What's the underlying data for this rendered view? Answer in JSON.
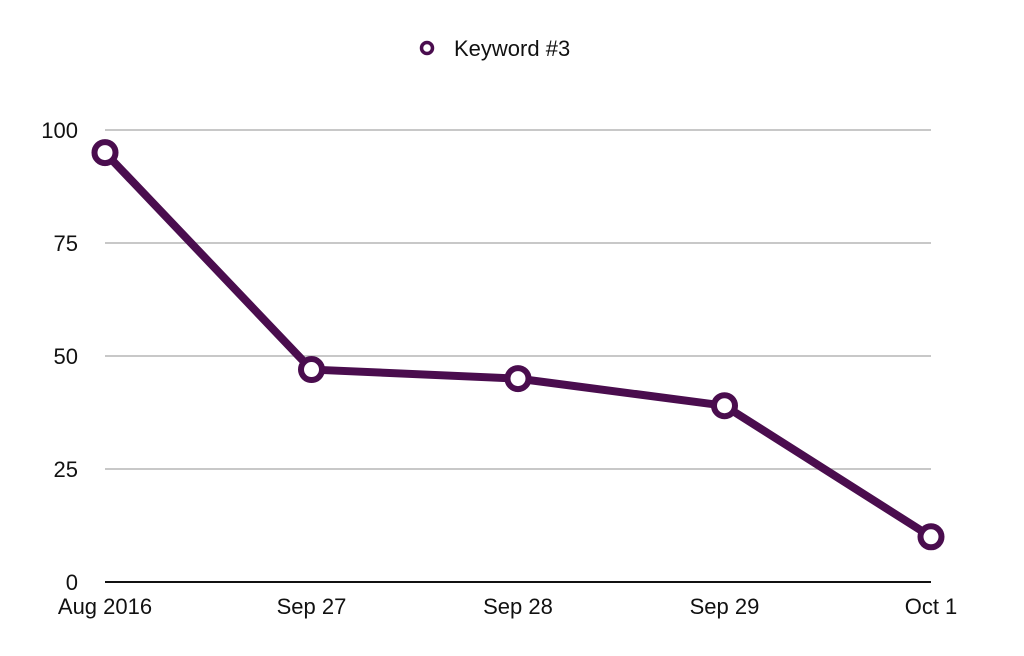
{
  "colors": {
    "series": "#4a0d4e",
    "grid": "#b5b5b5",
    "axis": "#111111",
    "marker_fill": "#ffffff"
  },
  "chart_data": {
    "type": "line",
    "title": "",
    "xlabel": "",
    "ylabel": "",
    "categories": [
      "Aug 2016",
      "Sep 27",
      "Sep 28",
      "Sep 29",
      "Oct 1"
    ],
    "series": [
      {
        "name": "Keyword #3",
        "values": [
          95,
          47,
          45,
          39,
          10
        ]
      }
    ],
    "ylim": [
      0,
      100
    ],
    "yticks": [
      0,
      25,
      50,
      75,
      100
    ],
    "grid": true,
    "legend": "top-center",
    "markers": "hollow-circle"
  }
}
